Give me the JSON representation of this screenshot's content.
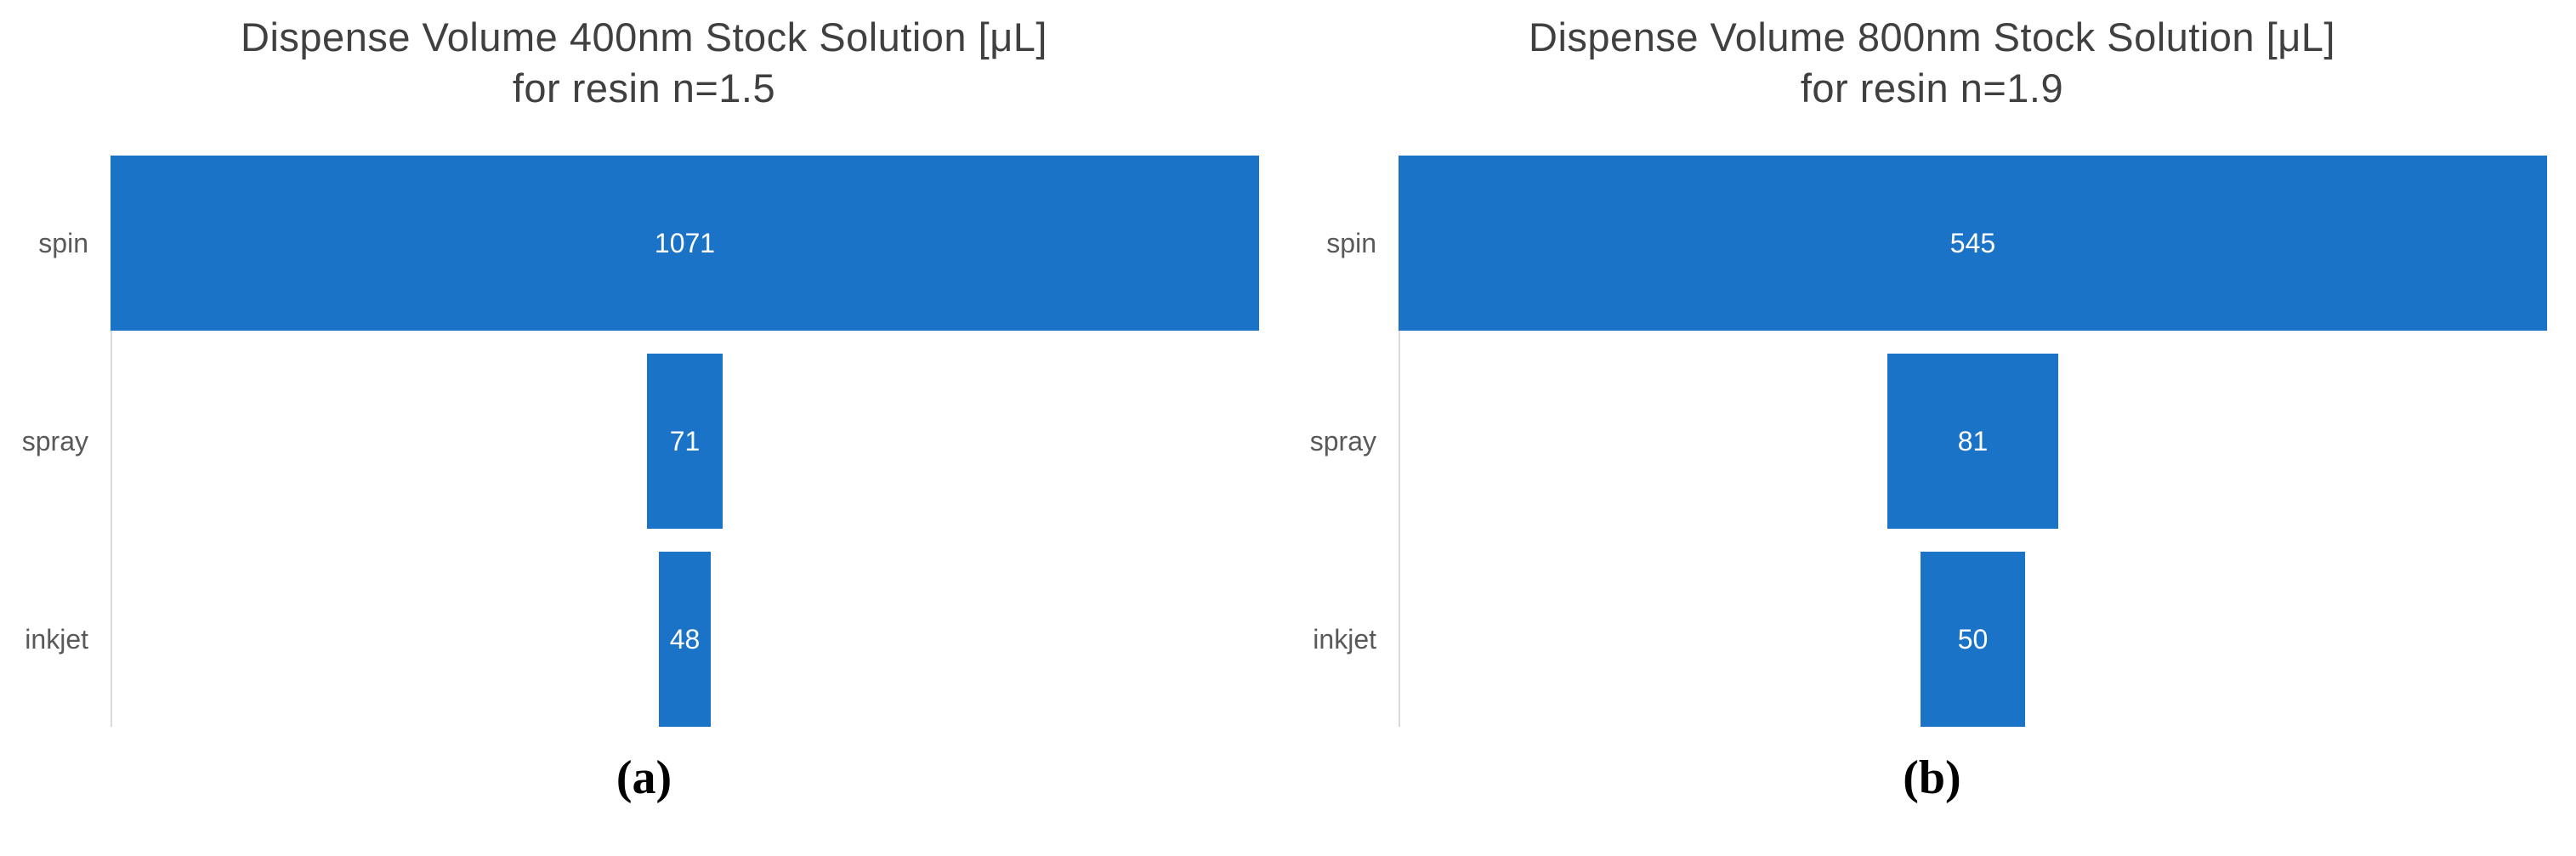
{
  "colors": {
    "bar": "#1b73c8",
    "title_text": "#404040",
    "category_text": "#595959",
    "value_text": "#ffffff",
    "axis_line": "#d9d9d9",
    "caption_text": "#000000",
    "background": "#ffffff"
  },
  "chart_data": [
    {
      "type": "funnel",
      "title": "Dispense Volume 400nm Stock Solution [μL]",
      "subtitle": "for resin n=1.5",
      "categories": [
        "spin",
        "spray",
        "inkjet"
      ],
      "values": [
        1071,
        71,
        48
      ],
      "max_value": 1071,
      "caption": "(a)",
      "legend": "none",
      "grid": false,
      "layout": "horizontal-centered-bars, category labels left of gray axis line, value labels white inside bars"
    },
    {
      "type": "funnel",
      "title": "Dispense Volume 800nm Stock Solution [μL]",
      "subtitle": "for resin n=1.9",
      "categories": [
        "spin",
        "spray",
        "inkjet"
      ],
      "values": [
        545,
        81,
        50
      ],
      "max_value": 545,
      "caption": "(b)",
      "legend": "none",
      "grid": false,
      "layout": "horizontal-centered-bars, category labels left of gray axis line, value labels white inside bars"
    }
  ]
}
